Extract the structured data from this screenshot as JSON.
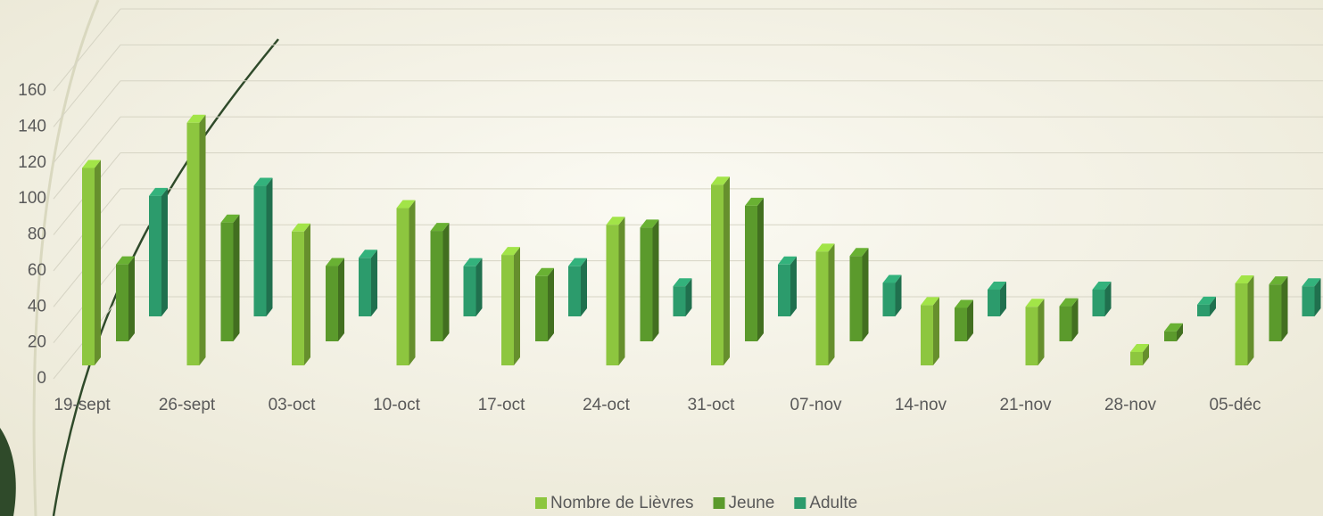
{
  "chart_data": {
    "type": "bar3d",
    "categories": [
      "19-sept",
      "26-sept",
      "03-oct",
      "10-oct",
      "17-oct",
      "24-oct",
      "31-oct",
      "07-nov",
      "14-nov",
      "21-nov",
      "28-nov",
      "05-déc"
    ],
    "series": [
      {
        "name": "Nombre de Lièvres",
        "color": "#8dc63f",
        "values": [
          118,
          145,
          80,
          94,
          66,
          84,
          108,
          68,
          36,
          35,
          8,
          49
        ]
      },
      {
        "name": "Jeune",
        "color": "#5b9a2c",
        "values": [
          46,
          71,
          45,
          66,
          39,
          68,
          81,
          51,
          20,
          21,
          6,
          34
        ]
      },
      {
        "name": "Adulte",
        "color": "#2c9b6c",
        "values": [
          72,
          78,
          35,
          30,
          30,
          18,
          31,
          20,
          16,
          16,
          7,
          18
        ]
      }
    ],
    "ylim": [
      0,
      160
    ],
    "yticks": [
      0,
      20,
      40,
      60,
      80,
      100,
      120,
      140,
      160
    ],
    "grid": true
  }
}
